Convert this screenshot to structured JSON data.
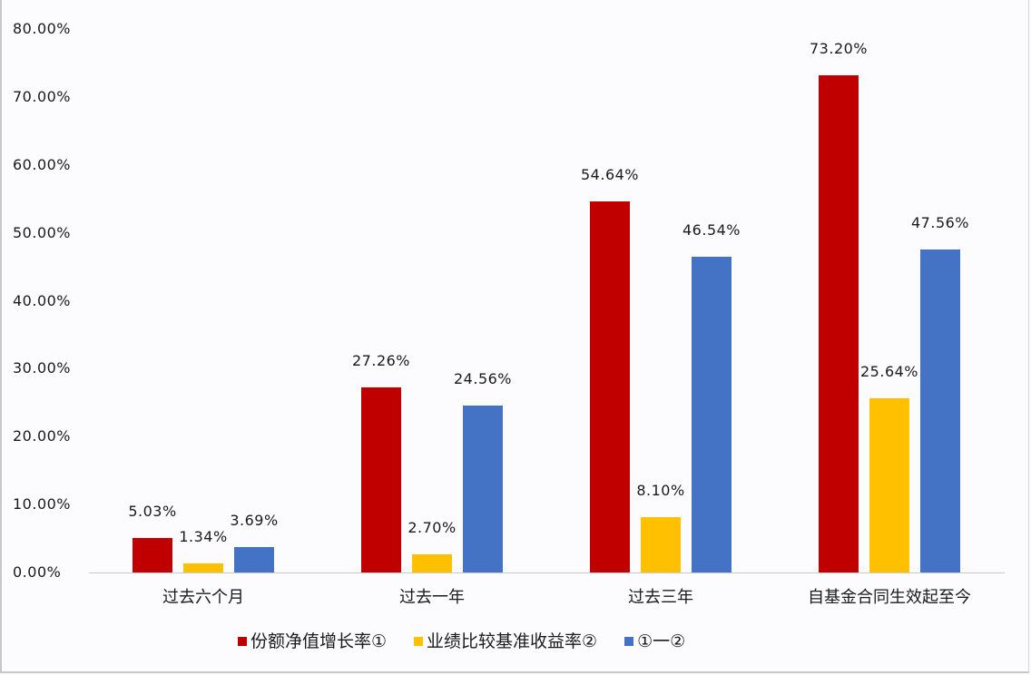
{
  "chart_data": {
    "type": "bar",
    "title": "",
    "xlabel": "",
    "ylabel": "",
    "ylim": [
      0,
      80
    ],
    "y_ticks": [
      "0.00%",
      "10.00%",
      "20.00%",
      "30.00%",
      "40.00%",
      "50.00%",
      "60.00%",
      "70.00%",
      "80.00%"
    ],
    "grid": false,
    "legend_position": "bottom",
    "categories": [
      "过去六个月",
      "过去一年",
      "过去三年",
      "自基金合同生效起至今"
    ],
    "series": [
      {
        "name": "份额净值增长率①",
        "color": "#c00000",
        "values": [
          5.03,
          27.26,
          54.64,
          73.2
        ],
        "labels": [
          "5.03%",
          "27.26%",
          "54.64%",
          "73.20%"
        ]
      },
      {
        "name": "业绩比较基准收益率②",
        "color": "#ffc000",
        "values": [
          1.34,
          2.7,
          8.1,
          25.64
        ],
        "labels": [
          "1.34%",
          "2.70%",
          "8.10%",
          "25.64%"
        ]
      },
      {
        "name": "①一②",
        "color": "#4472c4",
        "values": [
          3.69,
          24.56,
          46.54,
          47.56
        ],
        "labels": [
          "3.69%",
          "24.56%",
          "46.54%",
          "47.56%"
        ]
      }
    ]
  }
}
